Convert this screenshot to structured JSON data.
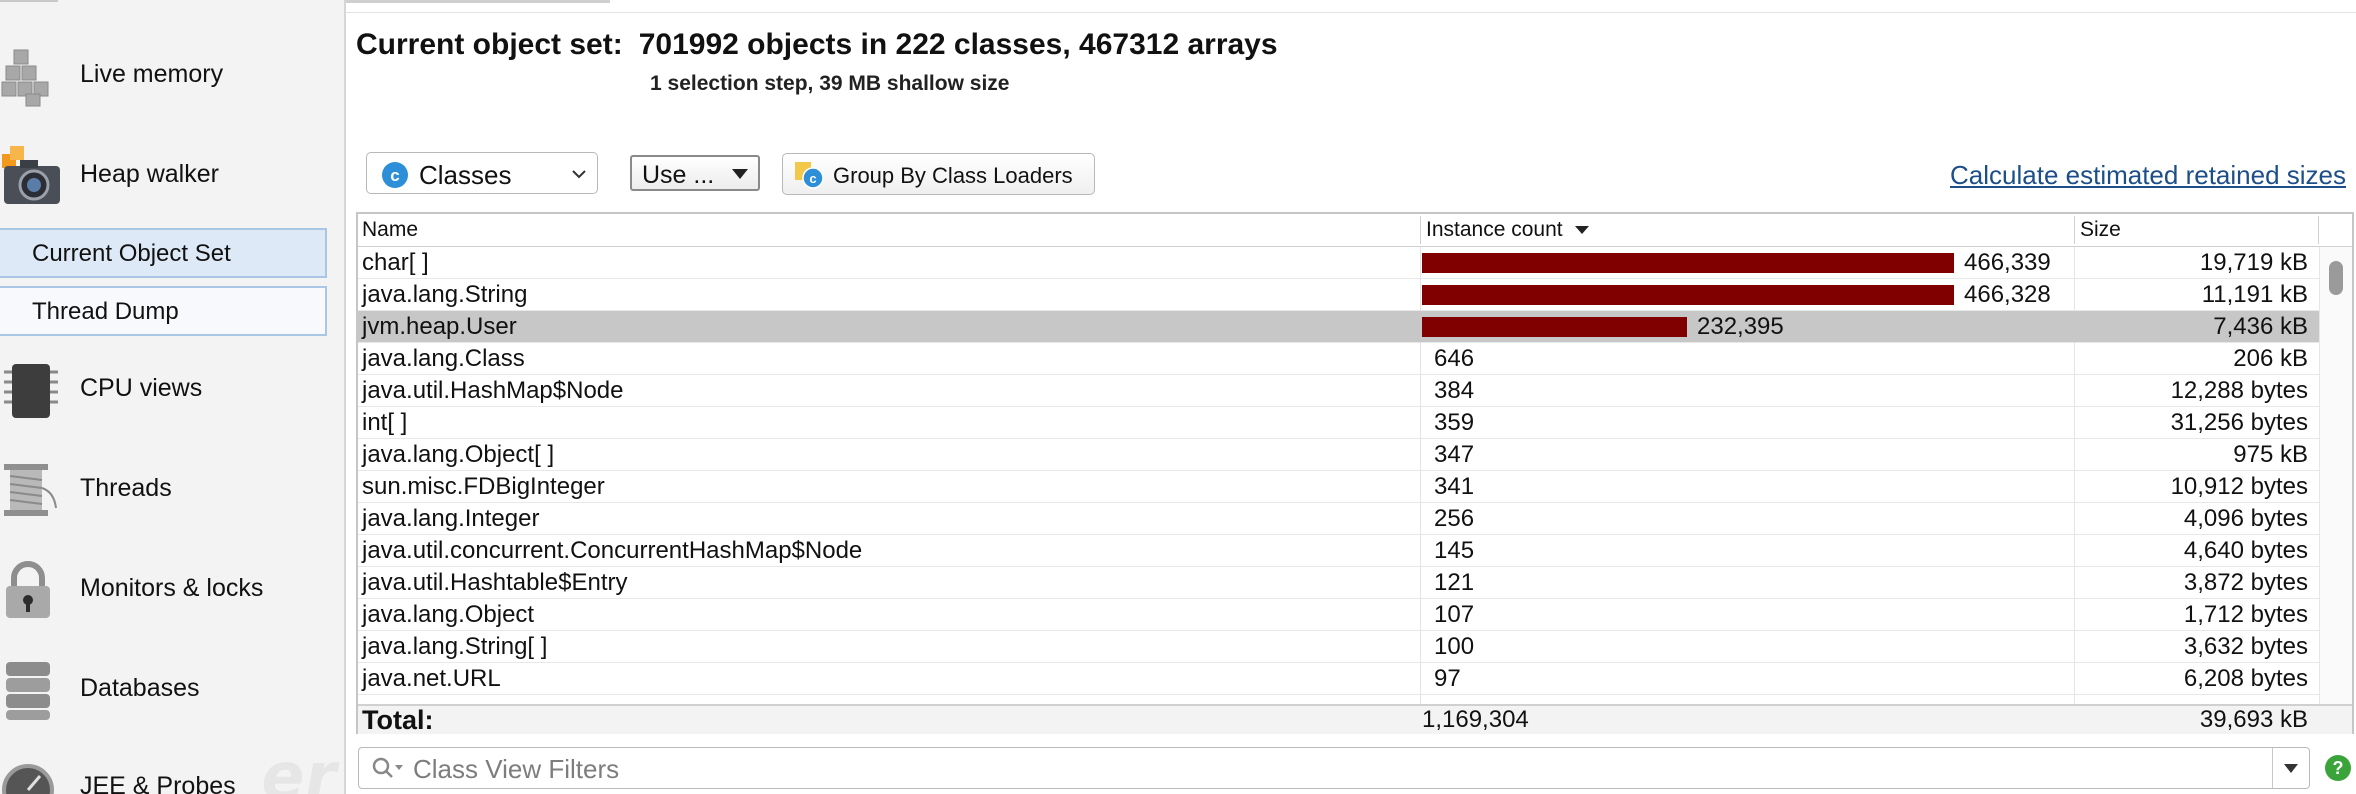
{
  "sidebar": {
    "live_memory": "Live memory",
    "heap_walker": "Heap walker",
    "sub_items": [
      "Current Object Set",
      "Thread Dump"
    ],
    "cpu_views": "CPU views",
    "threads": "Threads",
    "monitors_locks": "Monitors & locks",
    "databases": "Databases",
    "jee_probes": "JEE & Probes",
    "icons": [
      "cubes-icon",
      "camera-icon",
      "cpu-chip-icon",
      "thread-spool-icon",
      "padlock-icon",
      "database-icon",
      "gauge-icon"
    ]
  },
  "header": {
    "title_label": "Current object set:",
    "title_value": "701992 objects in 222 classes, 467312 arrays",
    "subtitle": "1 selection step, 39 MB shallow size"
  },
  "toolbar": {
    "view_select": "Classes",
    "use_button": "Use ...",
    "group_button": "Group By Class Loaders",
    "calc_link": "Calculate estimated retained sizes"
  },
  "table": {
    "columns": [
      "Name",
      "Instance count",
      "Size"
    ],
    "sorted_column": "Instance count",
    "sort_direction": "descending",
    "bar_color": "#800000",
    "rows": [
      {
        "name": "char[ ]",
        "count": "466,339",
        "count_value": 466339,
        "size": "19,719 kB",
        "selected": false
      },
      {
        "name": "java.lang.String",
        "count": "466,328",
        "count_value": 466328,
        "size": "11,191 kB",
        "selected": false
      },
      {
        "name": "jvm.heap.User",
        "count": "232,395",
        "count_value": 232395,
        "size": "7,436 kB",
        "selected": true
      },
      {
        "name": "java.lang.Class",
        "count": "646",
        "count_value": 646,
        "size": "206 kB",
        "selected": false
      },
      {
        "name": "java.util.HashMap$Node",
        "count": "384",
        "count_value": 384,
        "size": "12,288 bytes",
        "selected": false
      },
      {
        "name": "int[ ]",
        "count": "359",
        "count_value": 359,
        "size": "31,256 bytes",
        "selected": false
      },
      {
        "name": "java.lang.Object[ ]",
        "count": "347",
        "count_value": 347,
        "size": "975 kB",
        "selected": false
      },
      {
        "name": "sun.misc.FDBigInteger",
        "count": "341",
        "count_value": 341,
        "size": "10,912 bytes",
        "selected": false
      },
      {
        "name": "java.lang.Integer",
        "count": "256",
        "count_value": 256,
        "size": "4,096 bytes",
        "selected": false
      },
      {
        "name": "java.util.concurrent.ConcurrentHashMap$Node",
        "count": "145",
        "count_value": 145,
        "size": "4,640 bytes",
        "selected": false
      },
      {
        "name": "java.util.Hashtable$Entry",
        "count": "121",
        "count_value": 121,
        "size": "3,872 bytes",
        "selected": false
      },
      {
        "name": "java.lang.Object",
        "count": "107",
        "count_value": 107,
        "size": "1,712 bytes",
        "selected": false
      },
      {
        "name": "java.lang.String[ ]",
        "count": "100",
        "count_value": 100,
        "size": "3,632 bytes",
        "selected": false
      },
      {
        "name": "java.net.URL",
        "count": "97",
        "count_value": 97,
        "size": "6,208 bytes",
        "selected": false
      }
    ],
    "total": {
      "label": "Total:",
      "count": "1,169,304",
      "size": "39,693 kB"
    }
  },
  "filter": {
    "placeholder": "Class View Filters"
  },
  "help": {
    "label": "?"
  }
}
